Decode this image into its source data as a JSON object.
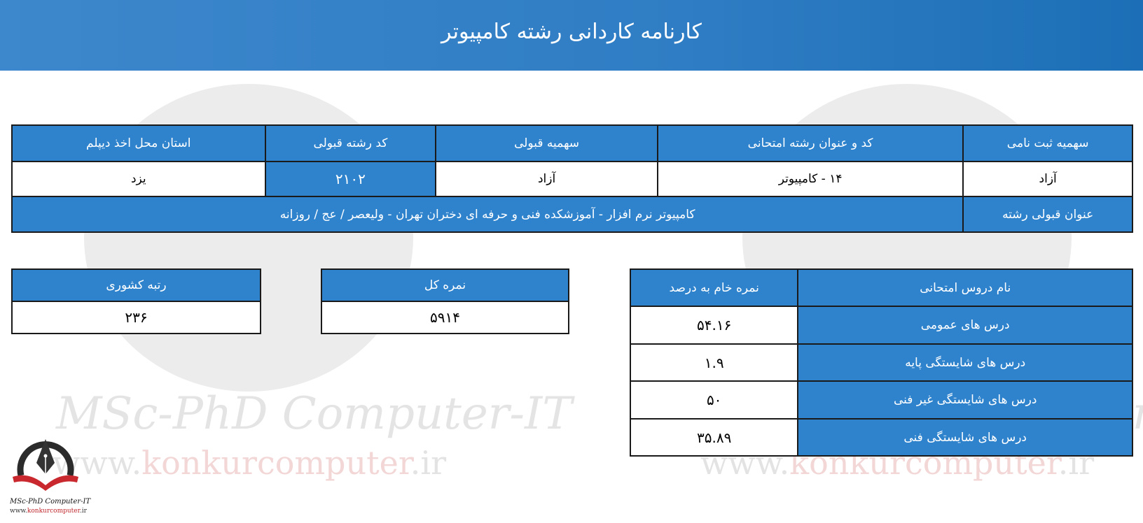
{
  "header": {
    "title": "کارنامه کاردانی رشته کامپیوتر"
  },
  "watermark": {
    "brand": "MSc-PhD Computer-IT",
    "url_prefix": "www.",
    "url_domain": "konkurcomputer",
    "url_suffix": ".ir"
  },
  "admission_table": {
    "headers": [
      "سهمیه ثبت نامی",
      "کد و عنوان رشته امتحانی",
      "سهمیه قبولی",
      "کد رشته قبولی",
      "استان محل اخذ دیپلم"
    ],
    "values": [
      "آزاد",
      "۱۴ - کامپیوتر",
      "آزاد",
      "۲۱۰۲",
      "یزد"
    ],
    "accepted_label": "عنوان قبولی رشته",
    "accepted_value": "کامپیوتر نرم افزار - آموزشکده فنی و حرفه ای دختران تهران - ولیعصر / عج / روزانه"
  },
  "rank": {
    "label": "رتبه کشوری",
    "value": "۲۳۶"
  },
  "total_score": {
    "label": "نمره کل",
    "value": "۵۹۱۴"
  },
  "courses": {
    "headers": [
      "نام دروس امتحانی",
      "نمره خام به درصد"
    ],
    "rows": [
      {
        "name": "درس های عمومی",
        "score": "۵۴.۱۶"
      },
      {
        "name": "درس های شایستگی پایه",
        "score": "۱.۹"
      },
      {
        "name": "درس های شایستگی غیر فنی",
        "score": "۵۰"
      },
      {
        "name": "درس های شایستگی فنی",
        "score": "۳۵.۸۹"
      }
    ]
  },
  "colors": {
    "header": "#2f7dc4",
    "cell": "#2f83cd",
    "border": "#1a1a1a"
  }
}
